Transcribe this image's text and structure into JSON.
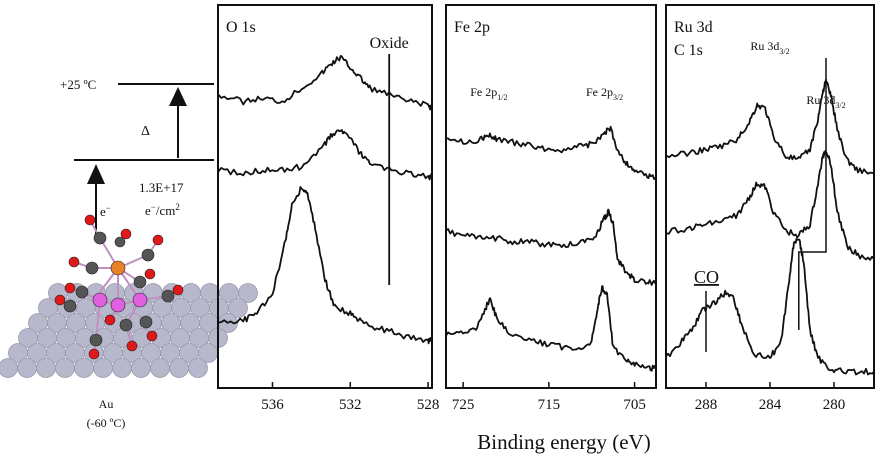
{
  "scheme": {
    "temp_top": "+25 ºC",
    "delta": "Δ",
    "dose": "1.3E+17",
    "dose_unit_pre": "e",
    "dose_unit_post": "/cm",
    "electron": "e",
    "substrate": "Au",
    "substrate_temp": "(-60 ºC)",
    "atom_colors": {
      "Fe": "#e8822a",
      "Ru": "#e060e0",
      "O": "#e01818",
      "C": "#555555",
      "Au": "#b8b8cc"
    }
  },
  "xlabel": "Binding energy (eV)",
  "chart_data": [
    {
      "type": "line",
      "title": "O 1s",
      "xlim": [
        538.8,
        527.8
      ],
      "xticks": [
        536,
        532,
        528
      ],
      "annotations": [
        {
          "text": "Oxide",
          "x": 530.0
        }
      ],
      "series": [
        {
          "x": [
            538.8,
            537.5,
            536.5,
            535.5,
            534.5,
            533.5,
            533,
            532.5,
            532,
            531.5,
            531,
            530,
            529,
            528,
            527.8
          ],
          "y": [
            0.84,
            0.82,
            0.83,
            0.82,
            0.86,
            0.9,
            0.93,
            0.95,
            0.92,
            0.89,
            0.86,
            0.84,
            0.82,
            0.81,
            0.8
          ]
        },
        {
          "x": [
            538.8,
            537.5,
            536.5,
            535.5,
            534.5,
            533.5,
            533,
            532.5,
            532,
            531.5,
            531,
            530,
            529,
            528,
            527.8
          ],
          "y": [
            0.62,
            0.61,
            0.62,
            0.62,
            0.63,
            0.68,
            0.72,
            0.74,
            0.71,
            0.67,
            0.64,
            0.62,
            0.61,
            0.6,
            0.6
          ]
        },
        {
          "x": [
            538.8,
            537.5,
            536.8,
            536,
            535.3,
            535,
            534.5,
            534.2,
            533.8,
            533.3,
            532.8,
            532,
            531.5,
            531,
            530,
            529,
            528,
            527.8
          ],
          "y": [
            0.17,
            0.18,
            0.2,
            0.26,
            0.42,
            0.52,
            0.57,
            0.55,
            0.45,
            0.3,
            0.22,
            0.2,
            0.18,
            0.16,
            0.15,
            0.13,
            0.12,
            0.12
          ]
        }
      ]
    },
    {
      "type": "line",
      "title": "Fe 2p",
      "xlim": [
        727,
        702.5
      ],
      "xticks": [
        725,
        715,
        705
      ],
      "annotations": [
        {
          "text": "Fe 2p",
          "sub": "1/2",
          "x": 722
        },
        {
          "text": "Fe 2p",
          "sub": "3/2",
          "x": 708.5
        }
      ],
      "series": [
        {
          "x": [
            727,
            725,
            723,
            722,
            721,
            719,
            717,
            715,
            713,
            711,
            709.5,
            708.5,
            707.8,
            707,
            706,
            705,
            703.5,
            702.5
          ],
          "y": [
            0.72,
            0.7,
            0.71,
            0.72,
            0.71,
            0.7,
            0.69,
            0.68,
            0.68,
            0.69,
            0.7,
            0.73,
            0.74,
            0.68,
            0.64,
            0.62,
            0.6,
            0.6
          ]
        },
        {
          "x": [
            727,
            725,
            723,
            721,
            719,
            717,
            715,
            713,
            711,
            709.5,
            708.5,
            708,
            707.5,
            707,
            706,
            705,
            703.5,
            702.5
          ],
          "y": [
            0.44,
            0.43,
            0.42,
            0.42,
            0.41,
            0.41,
            0.4,
            0.4,
            0.41,
            0.43,
            0.48,
            0.5,
            0.46,
            0.36,
            0.32,
            0.3,
            0.29,
            0.29
          ]
        },
        {
          "x": [
            727,
            725,
            723.5,
            722.3,
            721.8,
            721,
            719.5,
            717,
            715,
            713,
            711,
            710,
            709.3,
            708.8,
            708.2,
            707.5,
            706,
            705,
            703.5,
            702.5
          ],
          "y": [
            0.14,
            0.14,
            0.16,
            0.22,
            0.24,
            0.18,
            0.14,
            0.12,
            0.11,
            0.1,
            0.1,
            0.12,
            0.22,
            0.28,
            0.25,
            0.1,
            0.06,
            0.05,
            0.04,
            0.04
          ]
        }
      ]
    },
    {
      "type": "line",
      "title": "Ru 3d",
      "subtitle": "C 1s",
      "xlim": [
        290.5,
        277.5
      ],
      "xticks": [
        288,
        284,
        280
      ],
      "annotations": [
        {
          "text": "Ru 3d",
          "sub": "3/2",
          "x": 284
        },
        {
          "text": "Ru 3d",
          "sub": "3/2",
          "x": 280.5
        },
        {
          "text": "CO",
          "x": 288
        }
      ],
      "series": [
        {
          "x": [
            290.5,
            289,
            288,
            287,
            286,
            285.3,
            284.8,
            284.3,
            283.8,
            283,
            282.2,
            281.5,
            281,
            280.7,
            280.5,
            280.2,
            279.8,
            279.2,
            278.5,
            277.5
          ],
          "y": [
            0.66,
            0.67,
            0.68,
            0.69,
            0.71,
            0.76,
            0.81,
            0.8,
            0.72,
            0.66,
            0.65,
            0.68,
            0.77,
            0.85,
            0.88,
            0.84,
            0.74,
            0.65,
            0.62,
            0.61
          ]
        },
        {
          "x": [
            290.5,
            289,
            288,
            287,
            286,
            285.3,
            284.8,
            284.3,
            283.8,
            283,
            282.2,
            281.5,
            281,
            280.7,
            280.5,
            280.2,
            279.8,
            279.2,
            278.5,
            277.5
          ],
          "y": [
            0.44,
            0.45,
            0.46,
            0.47,
            0.49,
            0.54,
            0.58,
            0.57,
            0.5,
            0.44,
            0.43,
            0.46,
            0.58,
            0.66,
            0.68,
            0.64,
            0.5,
            0.4,
            0.37,
            0.36
          ]
        },
        {
          "x": [
            290.5,
            289.5,
            288.8,
            288.2,
            287.5,
            286.8,
            286.3,
            285.8,
            285,
            284,
            283.3,
            282.8,
            282.5,
            282.2,
            281.9,
            281.5,
            281,
            280.3,
            279.5,
            278.5,
            277.5
          ],
          "y": [
            0.07,
            0.12,
            0.16,
            0.21,
            0.23,
            0.26,
            0.25,
            0.17,
            0.08,
            0.07,
            0.12,
            0.3,
            0.41,
            0.42,
            0.35,
            0.15,
            0.07,
            0.04,
            0.03,
            0.03,
            0.03
          ]
        }
      ]
    }
  ]
}
